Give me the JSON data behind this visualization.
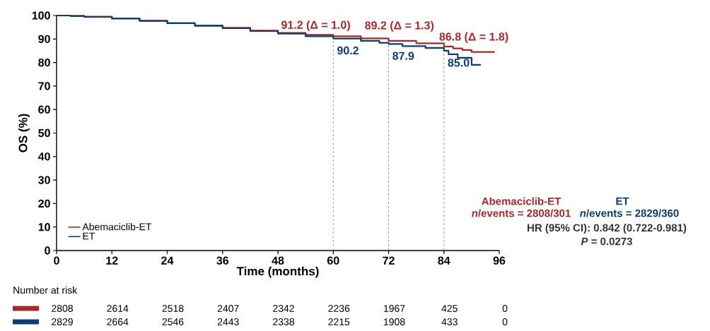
{
  "chart_data": {
    "type": "step",
    "xlabel": "Time (months)",
    "ylabel": "OS (%)",
    "xlim": [
      0,
      96
    ],
    "ylim": [
      0,
      100
    ],
    "xticks": [
      0,
      12,
      24,
      36,
      48,
      60,
      72,
      84,
      96
    ],
    "yticks": [
      0,
      10,
      20,
      30,
      40,
      50,
      60,
      70,
      80,
      90,
      100
    ],
    "legend": "bottom left",
    "series": [
      {
        "name": "Abemaciclib-ET",
        "color": "#a32a2e",
        "x": [
          0,
          3,
          6,
          12,
          18,
          24,
          30,
          36,
          42,
          48,
          54,
          60,
          66,
          72,
          78,
          84,
          86,
          88,
          90,
          95
        ],
        "values": [
          100,
          99.8,
          99.5,
          98.8,
          97.8,
          96.8,
          95.8,
          94.8,
          93.6,
          92.6,
          91.8,
          91.2,
          90.3,
          89.2,
          88.2,
          86.8,
          86,
          85.3,
          84.5,
          84.5
        ]
      },
      {
        "name": "ET",
        "color": "#0f3c6e",
        "x": [
          0,
          3,
          6,
          12,
          18,
          24,
          30,
          36,
          42,
          48,
          54,
          60,
          66,
          70,
          72,
          75,
          80,
          84,
          85,
          87,
          89,
          90,
          92
        ],
        "values": [
          100,
          99.8,
          99.4,
          98.7,
          97.7,
          96.7,
          95.6,
          94.6,
          93.4,
          92.3,
          91.2,
          90.2,
          89.2,
          88.4,
          87.9,
          87,
          86.2,
          85,
          83.5,
          82,
          82,
          79,
          79
        ]
      }
    ],
    "ref_lines": [
      {
        "axis": "x",
        "value": 60,
        "color": "#808080",
        "line_style": "dashed"
      },
      {
        "axis": "x",
        "value": 72,
        "color": "#808080",
        "line_style": "dashed"
      },
      {
        "axis": "x",
        "value": 84,
        "color": "#808080",
        "line_style": "dashed"
      }
    ],
    "annotations": [
      {
        "text": "91.2 (Δ = 1.0)",
        "x": 60,
        "y": 91.2
      },
      {
        "text": "89.2 (Δ = 1.3)",
        "x": 72,
        "y": 89.2
      },
      {
        "text": "86.8 (Δ = 1.8)",
        "x": 84,
        "y": 86.8
      },
      {
        "text": "90.2",
        "x": 60,
        "y": 90.2
      },
      {
        "text": "87.9",
        "x": 72,
        "y": 87.9
      },
      {
        "text": "85.0",
        "x": 84,
        "y": 85.0
      },
      "Abemaciclib-ET",
      "*n*/events = 2808/301",
      "ET",
      "*n*/events = 2829/360",
      "HR (95% CI): 0.842 (0.722-0.981)",
      "*P* = 0.0273",
      "Number at risk",
      "2808",
      "2614",
      "2518",
      "2407",
      "2342",
      "2236",
      "1967",
      "425",
      "0",
      "2829",
      "2664",
      "2546",
      "2443",
      "2338",
      "2215",
      "1908",
      "433",
      "0"
    ]
  }
}
